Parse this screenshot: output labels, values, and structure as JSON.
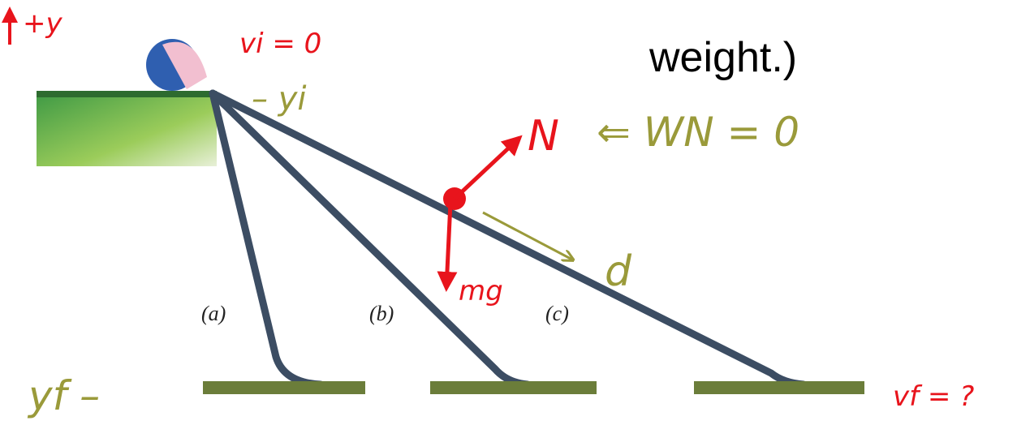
{
  "slide_text": "weight.)",
  "slide_labels": [
    "(a)",
    "(b)",
    "(c)"
  ],
  "annotations": {
    "up_axis": "+y",
    "initial_speed": "vi = 0",
    "initial_height": "– yi",
    "normal_force": "N",
    "normal_work": "⇐ WN = 0",
    "gravity": "mg",
    "displacement": "d",
    "final_height": "yf –",
    "final_speed": "vf = ?"
  }
}
